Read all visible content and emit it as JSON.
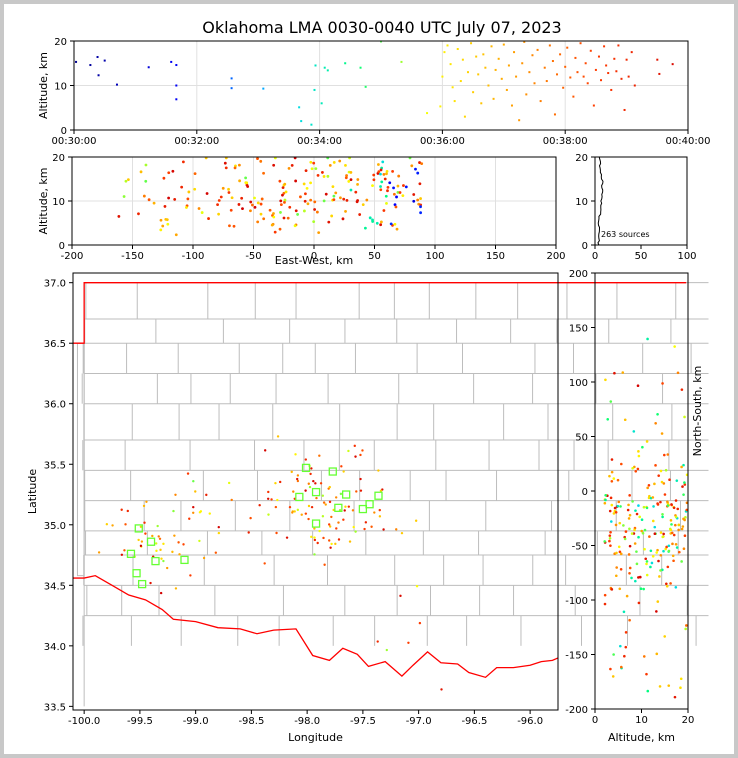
{
  "title": "Oklahoma LMA 0030-0040 UTC July 07, 2023",
  "source_count_label": "263 sources",
  "chart_data": [
    {
      "type": "scatter",
      "panel": "altitude-vs-time",
      "xlabel": "",
      "ylabel": "Altitude, km",
      "xlim": [
        "00:30:00",
        "00:40:00"
      ],
      "ylim": [
        0,
        20
      ],
      "xtick_labels": [
        "00:30:00",
        "00:32:00",
        "00:34:00",
        "00:36:00",
        "00:38:00",
        "00:40:00"
      ],
      "ytick_labels": [
        "0",
        "10",
        "20"
      ],
      "grid": true,
      "color_encoding": "time (blue to red)",
      "points": [
        {
          "t": "00:30:02",
          "alt": 15.3
        },
        {
          "t": "00:30:16",
          "alt": 14.6
        },
        {
          "t": "00:30:23",
          "alt": 16.4
        },
        {
          "t": "00:30:24",
          "alt": 12.3
        },
        {
          "t": "00:30:30",
          "alt": 15.6
        },
        {
          "t": "00:30:42",
          "alt": 10.2
        },
        {
          "t": "00:31:13",
          "alt": 14.1
        },
        {
          "t": "00:31:35",
          "alt": 15.3
        },
        {
          "t": "00:31:40",
          "alt": 14.6
        },
        {
          "t": "00:31:40",
          "alt": 10.0
        },
        {
          "t": "00:31:40",
          "alt": 6.9
        },
        {
          "t": "00:32:34",
          "alt": 11.6
        },
        {
          "t": "00:32:34",
          "alt": 9.4
        },
        {
          "t": "00:33:05",
          "alt": 9.3
        },
        {
          "t": "00:33:40",
          "alt": 5.1
        },
        {
          "t": "00:33:42",
          "alt": 2.0
        },
        {
          "t": "00:33:52",
          "alt": 1.2
        },
        {
          "t": "00:33:55",
          "alt": 9.0
        },
        {
          "t": "00:33:56",
          "alt": 14.5
        },
        {
          "t": "00:34:02",
          "alt": 6.0
        },
        {
          "t": "00:34:05",
          "alt": 14.0
        },
        {
          "t": "00:34:08",
          "alt": 13.4
        },
        {
          "t": "00:34:25",
          "alt": 15.0
        },
        {
          "t": "00:34:40",
          "alt": 14.0
        },
        {
          "t": "00:34:45",
          "alt": 9.7
        },
        {
          "t": "00:35:00",
          "alt": 19.9
        },
        {
          "t": "00:35:20",
          "alt": 15.3
        },
        {
          "t": "00:35:45",
          "alt": 3.8
        },
        {
          "t": "00:35:58",
          "alt": 5.3
        },
        {
          "t": "00:36:00",
          "alt": 12.0
        },
        {
          "t": "00:36:02",
          "alt": 17.5
        },
        {
          "t": "00:36:05",
          "alt": 19.0
        },
        {
          "t": "00:36:08",
          "alt": 14.8
        },
        {
          "t": "00:36:10",
          "alt": 9.6
        },
        {
          "t": "00:36:12",
          "alt": 6.5
        },
        {
          "t": "00:36:15",
          "alt": 18.2
        },
        {
          "t": "00:36:18",
          "alt": 11.0
        },
        {
          "t": "00:36:20",
          "alt": 15.8
        },
        {
          "t": "00:36:22",
          "alt": 3.0
        },
        {
          "t": "00:36:25",
          "alt": 13.0
        },
        {
          "t": "00:36:28",
          "alt": 19.5
        },
        {
          "t": "00:36:30",
          "alt": 8.5
        },
        {
          "t": "00:36:33",
          "alt": 16.5
        },
        {
          "t": "00:36:35",
          "alt": 12.5
        },
        {
          "t": "00:36:38",
          "alt": 6.0
        },
        {
          "t": "00:36:40",
          "alt": 17.0
        },
        {
          "t": "00:36:42",
          "alt": 14.0
        },
        {
          "t": "00:36:45",
          "alt": 10.0
        },
        {
          "t": "00:36:48",
          "alt": 18.8
        },
        {
          "t": "00:36:50",
          "alt": 7.0
        },
        {
          "t": "00:36:52",
          "alt": 13.5
        },
        {
          "t": "00:36:55",
          "alt": 16.0
        },
        {
          "t": "00:36:58",
          "alt": 11.5
        },
        {
          "t": "00:37:00",
          "alt": 19.2
        },
        {
          "t": "00:37:03",
          "alt": 9.0
        },
        {
          "t": "00:37:05",
          "alt": 14.5
        },
        {
          "t": "00:37:08",
          "alt": 5.5
        },
        {
          "t": "00:37:10",
          "alt": 17.5
        },
        {
          "t": "00:37:12",
          "alt": 12.0
        },
        {
          "t": "00:37:15",
          "alt": 2.2
        },
        {
          "t": "00:37:18",
          "alt": 15.0
        },
        {
          "t": "00:37:20",
          "alt": 19.8
        },
        {
          "t": "00:37:22",
          "alt": 8.0
        },
        {
          "t": "00:37:25",
          "alt": 13.0
        },
        {
          "t": "00:37:28",
          "alt": 16.8
        },
        {
          "t": "00:37:30",
          "alt": 10.5
        },
        {
          "t": "00:37:33",
          "alt": 18.0
        },
        {
          "t": "00:37:36",
          "alt": 6.5
        },
        {
          "t": "00:37:40",
          "alt": 14.0
        },
        {
          "t": "00:37:42",
          "alt": 11.0
        },
        {
          "t": "00:37:45",
          "alt": 19.0
        },
        {
          "t": "00:37:48",
          "alt": 15.5
        },
        {
          "t": "00:37:50",
          "alt": 3.5
        },
        {
          "t": "00:37:52",
          "alt": 12.5
        },
        {
          "t": "00:37:55",
          "alt": 17.0
        },
        {
          "t": "00:37:58",
          "alt": 9.5
        },
        {
          "t": "00:38:00",
          "alt": 14.2
        },
        {
          "t": "00:38:02",
          "alt": 18.5
        },
        {
          "t": "00:38:05",
          "alt": 11.8
        },
        {
          "t": "00:38:08",
          "alt": 7.5
        },
        {
          "t": "00:38:10",
          "alt": 16.2
        },
        {
          "t": "00:38:12",
          "alt": 13.0
        },
        {
          "t": "00:38:15",
          "alt": 19.5
        },
        {
          "t": "00:38:18",
          "alt": 12.0
        },
        {
          "t": "00:38:20",
          "alt": 15.0
        },
        {
          "t": "00:38:22",
          "alt": 10.5
        },
        {
          "t": "00:38:25",
          "alt": 17.8
        },
        {
          "t": "00:38:28",
          "alt": 5.5
        },
        {
          "t": "00:38:30",
          "alt": 13.5
        },
        {
          "t": "00:38:33",
          "alt": 16.5
        },
        {
          "t": "00:38:35",
          "alt": 11.2
        },
        {
          "t": "00:38:38",
          "alt": 18.8
        },
        {
          "t": "00:38:40",
          "alt": 14.5
        },
        {
          "t": "00:38:42",
          "alt": 12.8
        },
        {
          "t": "00:38:45",
          "alt": 9.0
        },
        {
          "t": "00:38:48",
          "alt": 16.0
        },
        {
          "t": "00:38:50",
          "alt": 13.2
        },
        {
          "t": "00:38:52",
          "alt": 19.0
        },
        {
          "t": "00:38:55",
          "alt": 11.5
        },
        {
          "t": "00:38:58",
          "alt": 4.5
        },
        {
          "t": "00:39:00",
          "alt": 15.8
        },
        {
          "t": "00:39:02",
          "alt": 12.0
        },
        {
          "t": "00:39:05",
          "alt": 17.5
        },
        {
          "t": "00:39:08",
          "alt": 10.0
        },
        {
          "t": "00:39:30",
          "alt": 15.8
        },
        {
          "t": "00:39:32",
          "alt": 12.6
        },
        {
          "t": "00:39:45",
          "alt": 14.8
        }
      ]
    },
    {
      "type": "scatter",
      "panel": "altitude-vs-east-west",
      "xlabel": "East-West, km",
      "ylabel": "Altitude, km",
      "xlim": [
        -200,
        200
      ],
      "ylim": [
        0,
        20
      ],
      "xtick_labels": [
        "-200",
        "-150",
        "-100",
        "-50",
        "0",
        "50",
        "100",
        "150",
        "200"
      ],
      "ytick_labels": [
        "0",
        "10",
        "20"
      ],
      "grid": true
    },
    {
      "type": "histogram",
      "panel": "altitude-source-count",
      "xlim": [
        0,
        100
      ],
      "ylim": [
        0,
        20
      ],
      "xtick_labels": [
        "0",
        "50",
        "100"
      ],
      "ytick_labels": [
        "0",
        "10",
        "20"
      ],
      "annotation": "263 sources"
    },
    {
      "type": "scatter",
      "panel": "plan-view",
      "xlabel": "Longitude",
      "ylabel": "Latitude",
      "xlim": [
        -100.1,
        -95.75
      ],
      "ylim": [
        33.47,
        37.08
      ],
      "xtick_labels": [
        "-100.0",
        "-99.5",
        "-99.0",
        "-98.5",
        "-98.0",
        "-97.5",
        "-97.0",
        "-96.5",
        "-96.0"
      ],
      "ytick_labels": [
        "33.5",
        "34.0",
        "34.5",
        "35.0",
        "35.5",
        "36.0",
        "36.5",
        "37.0"
      ],
      "stations": [
        {
          "lon": -99.51,
          "lat": 34.97
        },
        {
          "lon": -99.4,
          "lat": 34.86
        },
        {
          "lon": -99.58,
          "lat": 34.76
        },
        {
          "lon": -99.36,
          "lat": 34.7
        },
        {
          "lon": -99.1,
          "lat": 34.71
        },
        {
          "lon": -99.53,
          "lat": 34.6
        },
        {
          "lon": -99.48,
          "lat": 34.51
        },
        {
          "lon": -98.07,
          "lat": 35.23
        },
        {
          "lon": -98.01,
          "lat": 35.47
        },
        {
          "lon": -97.92,
          "lat": 35.27
        },
        {
          "lon": -97.77,
          "lat": 35.44
        },
        {
          "lon": -97.92,
          "lat": 35.01
        },
        {
          "lon": -97.72,
          "lat": 35.14
        },
        {
          "lon": -97.65,
          "lat": 35.25
        },
        {
          "lon": -97.5,
          "lat": 35.13
        },
        {
          "lon": -97.44,
          "lat": 35.17
        },
        {
          "lon": -97.36,
          "lat": 35.24
        }
      ],
      "station_color": "#66ff33"
    },
    {
      "type": "scatter",
      "panel": "north-south-vs-altitude",
      "xlabel": "Altitude, km",
      "ylabel": "North-South, km",
      "xlim": [
        0,
        20
      ],
      "ylim": [
        -200,
        200
      ],
      "xtick_labels": [
        "0",
        "10",
        "20"
      ],
      "ytick_labels": [
        "-200",
        "-150",
        "-100",
        "-50",
        "0",
        "50",
        "100",
        "150",
        "200"
      ]
    }
  ]
}
